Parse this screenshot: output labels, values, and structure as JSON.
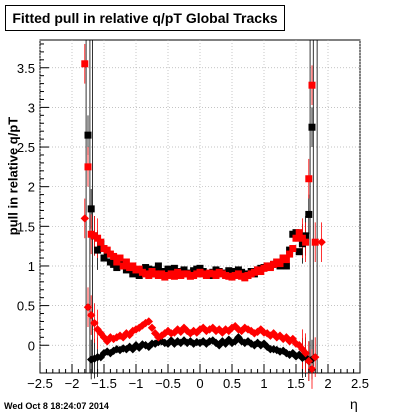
{
  "title": "Fitted pull in relative q/pT  Global Tracks",
  "timestamp": "Wed Oct  8 18:24:07 2014",
  "chart_data": {
    "type": "scatter",
    "title": "Fitted pull in relative q/pT  Global Tracks",
    "xlabel": "η",
    "ylabel": "pull in relative q/pT",
    "xlim": [
      -2.5,
      2.5
    ],
    "ylim": [
      -0.35,
      3.85
    ],
    "grid": true,
    "x_ticks": [
      "−2.5",
      "−2",
      "−1.5",
      "−1",
      "−0.5",
      "0",
      "0.5",
      "1",
      "1.5",
      "2",
      "2.5"
    ],
    "y_ticks": [
      "0",
      "0.5",
      "1",
      "1.5",
      "2",
      "2.5",
      "3",
      "3.5"
    ],
    "colors": {
      "black": "#000000",
      "red": "#ff0000",
      "grid": "#b0b0b0"
    },
    "series": [
      {
        "marker": "square",
        "color": "#000000",
        "x": [
          -1.75,
          -1.7,
          -1.65,
          -1.6,
          -1.55,
          -1.5,
          -1.45,
          -1.4,
          -1.35,
          -1.3,
          -1.25,
          -1.2,
          -1.15,
          -1.1,
          -1.05,
          -1.0,
          -0.95,
          -0.9,
          -0.85,
          -0.8,
          -0.75,
          -0.7,
          -0.65,
          -0.6,
          -0.55,
          -0.5,
          -0.45,
          -0.4,
          -0.35,
          -0.3,
          -0.25,
          -0.2,
          -0.15,
          -0.1,
          -0.05,
          0.0,
          0.05,
          0.1,
          0.15,
          0.2,
          0.25,
          0.3,
          0.35,
          0.4,
          0.45,
          0.5,
          0.55,
          0.6,
          0.65,
          0.7,
          0.75,
          0.8,
          0.85,
          0.9,
          0.95,
          1.0,
          1.05,
          1.1,
          1.15,
          1.2,
          1.25,
          1.3,
          1.35,
          1.4,
          1.45,
          1.5,
          1.55,
          1.6,
          1.65,
          1.7,
          1.75
        ],
        "y": [
          2.65,
          1.72,
          1.38,
          1.2,
          1.28,
          1.1,
          1.15,
          1.05,
          1.02,
          0.98,
          1.08,
          1.0,
          0.95,
          0.96,
          0.9,
          0.95,
          0.88,
          0.92,
          0.98,
          0.96,
          0.9,
          0.95,
          1.0,
          0.93,
          0.91,
          0.96,
          0.92,
          0.97,
          0.9,
          0.93,
          0.95,
          0.91,
          0.88,
          0.94,
          0.96,
          0.97,
          0.93,
          0.9,
          0.88,
          0.92,
          0.95,
          0.93,
          0.91,
          0.9,
          0.94,
          0.93,
          0.91,
          0.95,
          0.92,
          0.9,
          0.88,
          0.93,
          0.9,
          0.95,
          0.97,
          0.98,
          1.0,
          1.0,
          1.02,
          1.05,
          1.0,
          1.1,
          1.0,
          1.2,
          1.4,
          1.42,
          1.18,
          1.28,
          1.38,
          1.65,
          2.75
        ]
      },
      {
        "marker": "diamond",
        "color": "#000000",
        "x": [
          -1.7,
          -1.65,
          -1.6,
          -1.55,
          -1.5,
          -1.45,
          -1.4,
          -1.35,
          -1.3,
          -1.25,
          -1.2,
          -1.15,
          -1.1,
          -1.05,
          -1.0,
          -0.95,
          -0.9,
          -0.85,
          -0.8,
          -0.75,
          -0.7,
          -0.65,
          -0.6,
          -0.55,
          -0.5,
          -0.45,
          -0.4,
          -0.35,
          -0.3,
          -0.25,
          -0.2,
          -0.15,
          -0.1,
          -0.05,
          0.0,
          0.05,
          0.1,
          0.15,
          0.2,
          0.25,
          0.3,
          0.35,
          0.4,
          0.45,
          0.5,
          0.55,
          0.6,
          0.65,
          0.7,
          0.75,
          0.8,
          0.85,
          0.9,
          0.95,
          1.0,
          1.05,
          1.1,
          1.15,
          1.2,
          1.25,
          1.3,
          1.35,
          1.4,
          1.45,
          1.5,
          1.55,
          1.6,
          1.65,
          1.7,
          1.75
        ],
        "y": [
          -0.18,
          -0.17,
          -0.15,
          -0.15,
          -0.1,
          -0.08,
          -0.1,
          -0.07,
          -0.05,
          -0.06,
          -0.04,
          -0.05,
          -0.02,
          -0.05,
          0.0,
          -0.03,
          0.01,
          0.0,
          -0.02,
          0.02,
          0.02,
          0.04,
          0.05,
          0.03,
          0.02,
          0.06,
          0.02,
          0.05,
          0.03,
          0.06,
          0.03,
          0.05,
          0.02,
          0.04,
          0.03,
          0.05,
          0.02,
          0.05,
          0.06,
          0.03,
          0.0,
          0.05,
          0.02,
          0.07,
          0.03,
          0.05,
          0.1,
          0.05,
          0.03,
          0.05,
          0.02,
          0.0,
          0.03,
          0.0,
          0.02,
          -0.02,
          -0.05,
          -0.05,
          -0.06,
          -0.08,
          -0.07,
          -0.1,
          -0.12,
          -0.1,
          -0.14,
          -0.12,
          -0.16,
          -0.15,
          -0.2,
          -0.18
        ]
      },
      {
        "marker": "square",
        "color": "#ff0000",
        "x": [
          -1.8,
          -1.75,
          -1.7,
          -1.65,
          -1.6,
          -1.55,
          -1.5,
          -1.45,
          -1.4,
          -1.35,
          -1.3,
          -1.25,
          -1.2,
          -1.15,
          -1.1,
          -1.05,
          -1.0,
          -0.95,
          -0.9,
          -0.85,
          -0.8,
          -0.75,
          -0.7,
          -0.65,
          -0.6,
          -0.55,
          -0.5,
          -0.45,
          -0.4,
          -0.35,
          -0.3,
          -0.25,
          -0.2,
          -0.15,
          -0.1,
          -0.05,
          0.0,
          0.05,
          0.1,
          0.15,
          0.2,
          0.25,
          0.3,
          0.35,
          0.4,
          0.45,
          0.5,
          0.55,
          0.6,
          0.65,
          0.7,
          0.75,
          0.8,
          0.85,
          0.9,
          0.95,
          1.0,
          1.05,
          1.1,
          1.15,
          1.2,
          1.25,
          1.3,
          1.35,
          1.4,
          1.45,
          1.5,
          1.55,
          1.6,
          1.65,
          1.7,
          1.75,
          1.8
        ],
        "y": [
          3.55,
          2.25,
          1.4,
          1.38,
          1.35,
          1.3,
          1.22,
          1.2,
          1.15,
          1.12,
          1.05,
          1.1,
          1.0,
          1.05,
          0.98,
          1.0,
          0.95,
          0.96,
          0.92,
          0.9,
          0.88,
          0.93,
          0.9,
          0.88,
          0.9,
          0.86,
          0.88,
          0.9,
          0.87,
          0.92,
          0.88,
          0.9,
          0.9,
          0.87,
          0.88,
          0.9,
          0.92,
          0.9,
          0.88,
          0.91,
          0.9,
          0.88,
          0.92,
          0.9,
          0.88,
          0.87,
          0.86,
          0.88,
          0.9,
          0.87,
          0.85,
          0.88,
          0.9,
          0.92,
          0.95,
          0.93,
          0.97,
          1.0,
          0.98,
          1.02,
          1.05,
          1.03,
          1.1,
          1.08,
          1.15,
          1.22,
          1.35,
          1.42,
          1.35,
          1.3,
          2.1,
          3.28,
          1.3
        ]
      },
      {
        "marker": "diamond",
        "color": "#ff0000",
        "x": [
          -1.8,
          -1.75,
          -1.7,
          -1.65,
          -1.6,
          -1.55,
          -1.5,
          -1.45,
          -1.4,
          -1.35,
          -1.3,
          -1.25,
          -1.2,
          -1.15,
          -1.1,
          -1.05,
          -1.0,
          -0.95,
          -0.9,
          -0.85,
          -0.8,
          -0.75,
          -0.7,
          -0.65,
          -0.6,
          -0.55,
          -0.5,
          -0.45,
          -0.4,
          -0.35,
          -0.3,
          -0.25,
          -0.2,
          -0.15,
          -0.1,
          -0.05,
          0.0,
          0.05,
          0.1,
          0.15,
          0.2,
          0.25,
          0.3,
          0.35,
          0.4,
          0.45,
          0.5,
          0.55,
          0.6,
          0.65,
          0.7,
          0.75,
          0.8,
          0.85,
          0.9,
          0.95,
          1.0,
          1.05,
          1.1,
          1.15,
          1.2,
          1.25,
          1.3,
          1.35,
          1.4,
          1.45,
          1.5,
          1.55,
          1.6,
          1.65,
          1.7,
          1.75,
          1.8,
          1.9
        ],
        "y": [
          1.6,
          0.48,
          0.38,
          0.28,
          0.2,
          0.15,
          0.1,
          0.05,
          0.1,
          0.08,
          0.1,
          0.12,
          0.1,
          0.15,
          0.13,
          0.18,
          0.2,
          0.22,
          0.25,
          0.28,
          0.3,
          0.22,
          0.15,
          0.1,
          0.12,
          0.15,
          0.18,
          0.15,
          0.16,
          0.2,
          0.17,
          0.22,
          0.18,
          0.15,
          0.18,
          0.16,
          0.2,
          0.22,
          0.18,
          0.2,
          0.22,
          0.18,
          0.2,
          0.16,
          0.2,
          0.18,
          0.22,
          0.24,
          0.2,
          0.18,
          0.22,
          0.2,
          0.18,
          0.15,
          0.17,
          0.2,
          0.16,
          0.15,
          0.12,
          0.15,
          0.1,
          0.12,
          0.08,
          0.1,
          0.05,
          0.08,
          0.02,
          0.0,
          -0.05,
          -0.1,
          -0.2,
          -0.3,
          -0.15,
          1.3
        ]
      }
    ]
  }
}
